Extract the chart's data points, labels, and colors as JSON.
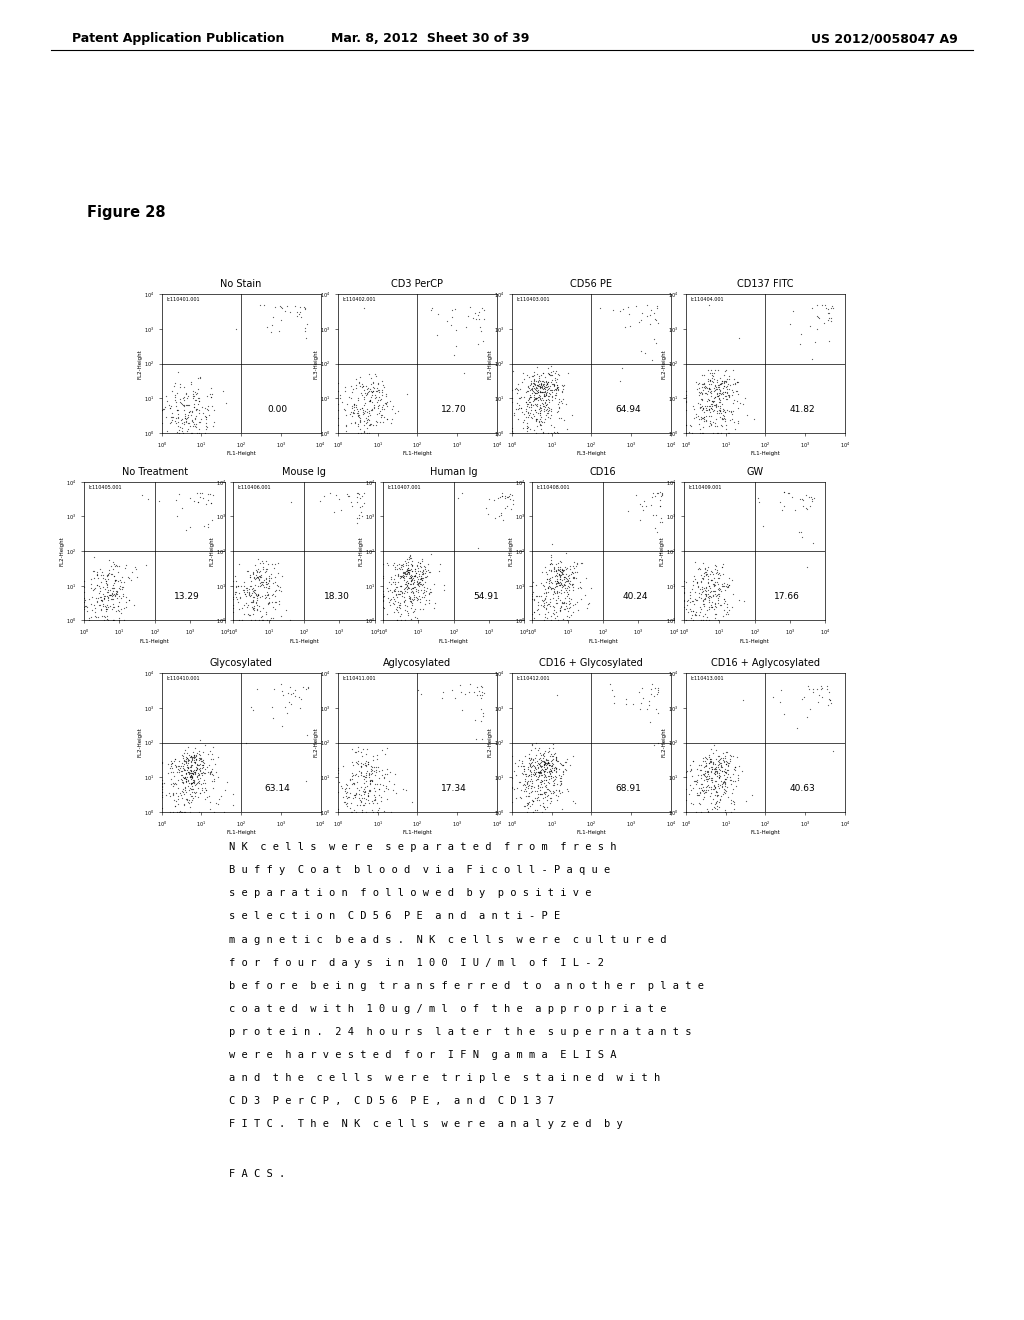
{
  "header_left": "Patent Application Publication",
  "header_mid": "Mar. 8, 2012  Sheet 30 of 39",
  "header_right": "US 2012/0058047 A9",
  "figure_label": "Figure 28",
  "row1_titles": [
    "No Stain",
    "CD3 PerCP",
    "CD56 PE",
    "CD137 FITC"
  ],
  "row1_ids_clean": [
    "lc110401.001",
    "lc110402.001",
    "lc110403.001",
    "lc110404.001"
  ],
  "row1_values": [
    "0.00",
    "12.70",
    "64.94",
    "41.82"
  ],
  "row1_xlabel": [
    "FL1-Height",
    "FL1-Height",
    "FL3-Height",
    "FL1-Height"
  ],
  "row1_ylabel": [
    "FL2-Height",
    "FL3-Height",
    "FL2-Height",
    "FL2-Height"
  ],
  "row2_titles": [
    "No Treatment",
    "Mouse Ig",
    "Human Ig",
    "CD16",
    "GW"
  ],
  "row2_ids": [
    "lc110405.001",
    "lc110406.001",
    "lc110407.001",
    "lc110408.001",
    "lc110409.001"
  ],
  "row2_values": [
    "13.29",
    "18.30",
    "54.91",
    "40.24",
    "17.66"
  ],
  "row2_xlabel": [
    "FL1-Height",
    "FL1-Height",
    "FL1-Height",
    "FL1-Height",
    "FL1-Height"
  ],
  "row3_titles": [
    "Glycosylated",
    "Aglycosylated",
    "CD16 + Glycosylated",
    "CD16 + Aglycosylated"
  ],
  "row3_ids": [
    "lc110410.001",
    "lc110411.001",
    "lc110412.001",
    "lc110413.001"
  ],
  "row3_values": [
    "63.14",
    "17.34",
    "68.91",
    "40.63"
  ],
  "row3_xlabel": [
    "FL1-Height",
    "FL1-Height",
    "FL1-Height",
    "FL1-Height"
  ],
  "caption_lines": [
    "N K  c e l l s  w e r e  s e p a r a t e d  f r o m  f r e s h",
    "B u f f y  C o a t  b l o o d  v i a  F i c o l l - P a q u e",
    "s e p a r a t i o n  f o l l o w e d  b y  p o s i t i v e",
    "s e l e c t i o n  C D 5 6  P E  a n d  a n t i - P E",
    "m a g n e t i c  b e a d s .  N K  c e l l s  w e r e  c u l t u r e d",
    "f o r  f o u r  d a y s  i n  1 0 0  I U / m l  o f  I L - 2",
    "b e f o r e  b e i n g  t r a n s f e r r e d  t o  a n o t h e r  p l a t e",
    "c o a t e d  w i t h  1 0 u g / m l  o f  t h e  a p p r o p r i a t e",
    "p r o t e i n .  2 4  h o u r s  l a t e r  t h e  s u p e r n a t a n t s",
    "w e r e  h a r v e s t e d  f o r  I F N  g a m m a  E L I S A",
    "a n d  t h e  c e l l s  w e r e  t r i p l e  s t a i n e d  w i t h",
    "C D 3  P e r C P ,  C D 5 6  P E ,  a n d  C D 1 3 7",
    "F I T C .  T h e  N K  c e l l s  w e r e  a n a l y z e d  b y"
  ],
  "caption2": "F A C S .",
  "bg_color": "#ffffff",
  "text_color": "#000000"
}
